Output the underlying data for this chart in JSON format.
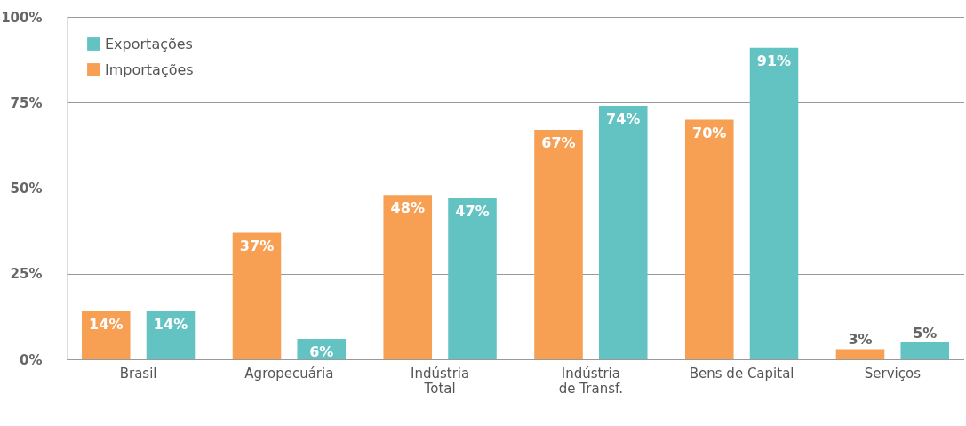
{
  "chart_data": {
    "type": "bar",
    "categories": [
      "Brasil",
      "Agropecuária",
      "Indústria\nTotal",
      "Indústria\nde Transf.",
      "Bens de Capital",
      "Serviços"
    ],
    "series": [
      {
        "name": "Exportações",
        "color": "#63c3c3",
        "values": [
          14,
          6,
          47,
          74,
          91,
          5
        ],
        "value_labels": [
          "14%",
          "6%",
          "47%",
          "74%",
          "91%",
          "5%"
        ]
      },
      {
        "name": "Importações",
        "color": "#f79f53",
        "values": [
          14,
          37,
          48,
          67,
          70,
          3
        ],
        "value_labels": [
          "14%",
          "37%",
          "48%",
          "67%",
          "70%",
          "3%"
        ]
      }
    ],
    "ylim": [
      0,
      100
    ],
    "yticks": [
      {
        "value": 0,
        "label": "0%"
      },
      {
        "value": 25,
        "label": "25%"
      },
      {
        "value": 50,
        "label": "50%"
      },
      {
        "value": 75,
        "label": "75%"
      },
      {
        "value": 100,
        "label": "100%"
      }
    ],
    "grid": "y",
    "legend": "top left"
  }
}
